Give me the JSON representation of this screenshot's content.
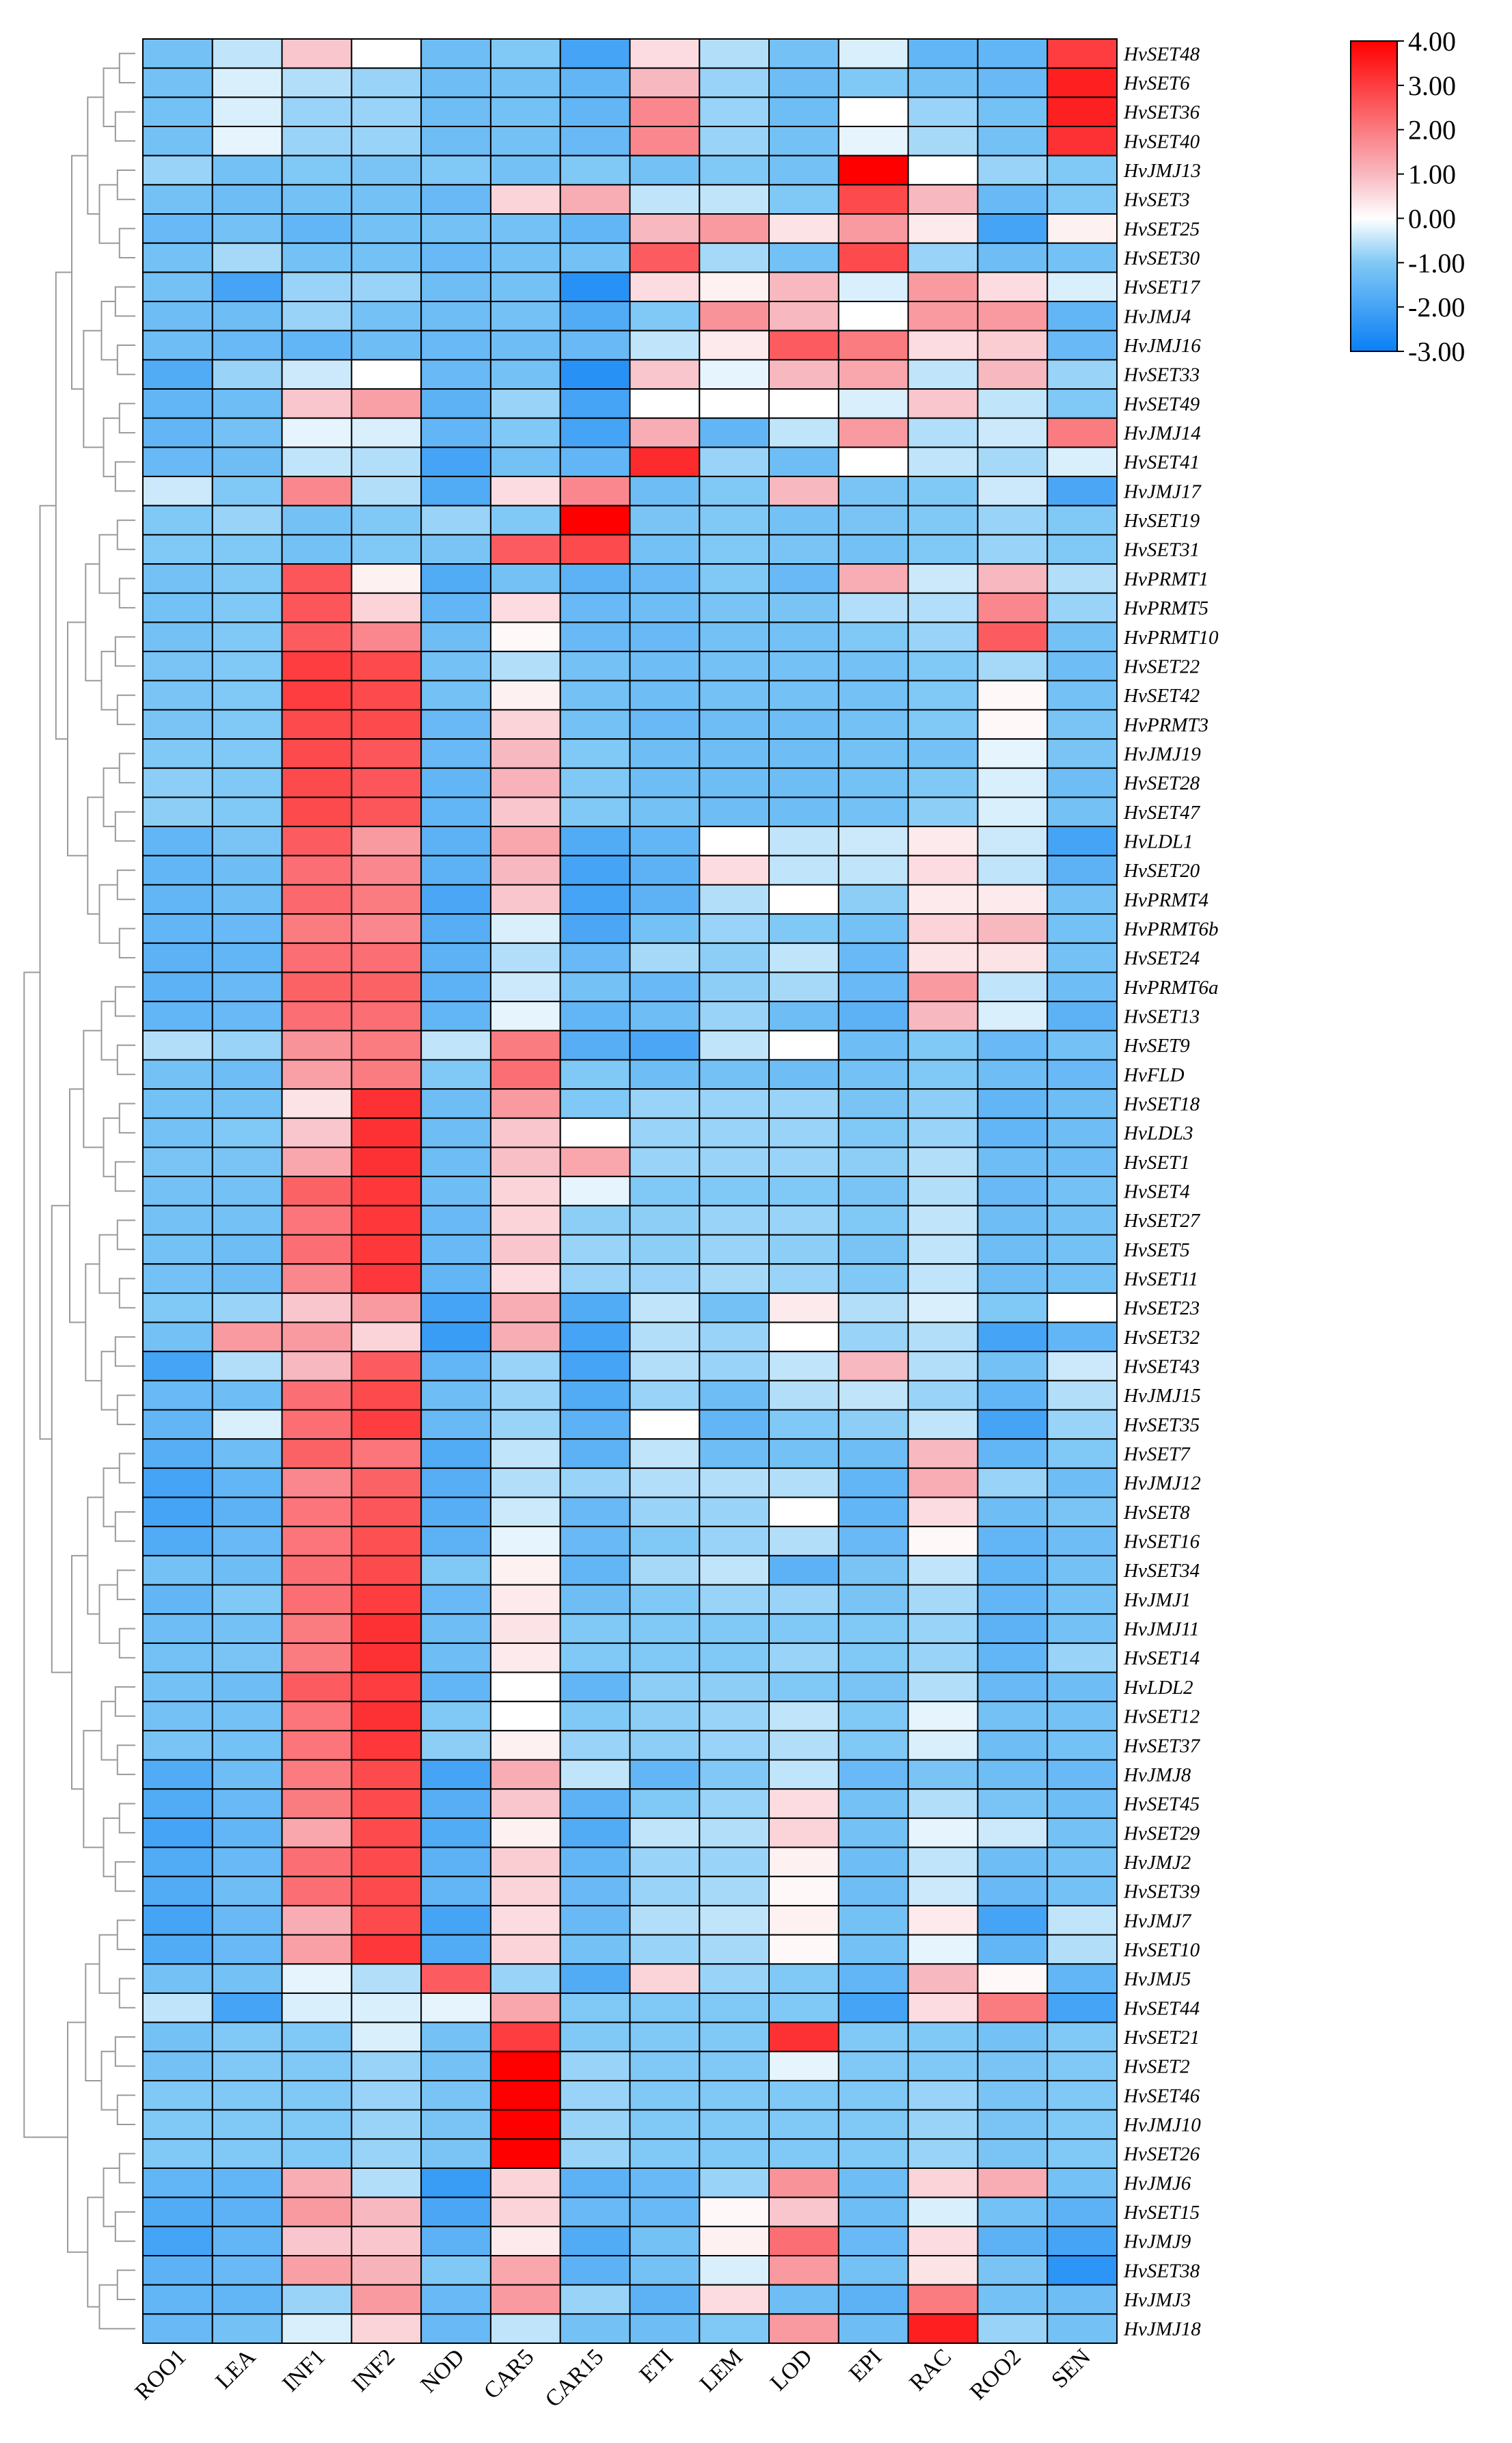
{
  "chart_data": {
    "type": "heatmap",
    "title": "",
    "columns": [
      "ROO1",
      "LEA",
      "INF1",
      "INF2",
      "NOD",
      "CAR5",
      "CAR15",
      "ETI",
      "LEM",
      "LOD",
      "EPI",
      "RAC",
      "ROO2",
      "SEN"
    ],
    "rows": [
      "HvSET48",
      "HvSET6",
      "HvSET36",
      "HvSET40",
      "HvJMJ13",
      "HvSET3",
      "HvSET25",
      "HvSET30",
      "HvSET17",
      "HvJMJ4",
      "HvJMJ16",
      "HvSET33",
      "HvSET49",
      "HvJMJ14",
      "HvSET41",
      "HvJMJ17",
      "HvSET19",
      "HvSET31",
      "HvPRMT1",
      "HvPRMT5",
      "HvPRMT10",
      "HvSET22",
      "HvSET42",
      "HvPRMT3",
      "HvJMJ19",
      "HvSET28",
      "HvSET47",
      "HvLDL1",
      "HvSET20",
      "HvPRMT4",
      "HvPRMT6b",
      "HvSET24",
      "HvPRMT6a",
      "HvSET13",
      "HvSET9",
      "HvFLD",
      "HvSET18",
      "HvLDL3",
      "HvSET1",
      "HvSET4",
      "HvSET27",
      "HvSET5",
      "HvSET11",
      "HvSET23",
      "HvSET32",
      "HvSET43",
      "HvJMJ15",
      "HvSET35",
      "HvSET7",
      "HvJMJ12",
      "HvSET8",
      "HvSET16",
      "HvSET34",
      "HvJMJ1",
      "HvJMJ11",
      "HvSET14",
      "HvLDL2",
      "HvSET12",
      "HvSET37",
      "HvJMJ8",
      "HvSET45",
      "HvSET29",
      "HvJMJ2",
      "HvSET39",
      "HvJMJ7",
      "HvSET10",
      "HvJMJ5",
      "HvSET44",
      "HvSET21",
      "HvSET2",
      "HvSET46",
      "HvJMJ10",
      "HvSET26",
      "HvJMJ6",
      "HvSET15",
      "HvJMJ9",
      "HvSET38",
      "HvJMJ3",
      "HvJMJ18"
    ],
    "values": [
      [
        -1.2,
        -0.5,
        0.8,
        0,
        -1.3,
        -1,
        -2,
        0.5,
        -0.6,
        -1.2,
        -0.3,
        -1.5,
        -1.5,
        3
      ],
      [
        -1.2,
        -0.3,
        -0.6,
        -0.8,
        -1.3,
        -1.2,
        -1.5,
        1,
        -0.8,
        -1.3,
        -1,
        -1.2,
        -1.4,
        3.5
      ],
      [
        -1.2,
        -0.3,
        -0.8,
        -0.8,
        -1.3,
        -1.2,
        -1.5,
        1.8,
        -0.8,
        -1.3,
        0,
        -0.8,
        -1.2,
        3.5
      ],
      [
        -1.2,
        -0.2,
        -0.8,
        -0.8,
        -1.3,
        -1.2,
        -1.4,
        1.8,
        -0.8,
        -1.2,
        -0.2,
        -0.7,
        -1.2,
        3.2
      ],
      [
        -0.8,
        -1.2,
        -1,
        -1.1,
        -1,
        -1.2,
        -1,
        -1.2,
        -1,
        -1.2,
        4,
        0,
        -0.8,
        -1
      ],
      [
        -1.2,
        -1.3,
        -1.2,
        -1.2,
        -1.4,
        0.6,
        1.2,
        -0.5,
        -0.5,
        -1,
        2.8,
        1,
        -1.4,
        -1
      ],
      [
        -1.4,
        -1.2,
        -1.5,
        -1.2,
        -1.2,
        -1.2,
        -1.5,
        1,
        1.5,
        0.4,
        1.5,
        0.3,
        -2,
        0.2
      ],
      [
        -1.2,
        -0.7,
        -1.2,
        -1.2,
        -1.4,
        -1.2,
        -1.2,
        2.5,
        -0.7,
        -1.2,
        2.8,
        -0.8,
        -1.3,
        -1.2
      ],
      [
        -1.2,
        -2,
        -0.8,
        -0.8,
        -1.3,
        -1.2,
        -2.5,
        0.5,
        0.2,
        1,
        -0.3,
        1.5,
        0.5,
        -0.3
      ],
      [
        -1.3,
        -1.3,
        -0.8,
        -1.2,
        -1.3,
        -1.2,
        -1.8,
        -1,
        1.6,
        1,
        0,
        1.5,
        1.5,
        -1.5
      ],
      [
        -1.3,
        -1.4,
        -1.5,
        -1.3,
        -1.4,
        -1.3,
        -1.4,
        -0.5,
        0.3,
        2.5,
        2,
        0.5,
        0.7,
        -1.4
      ],
      [
        -1.8,
        -0.8,
        -0.4,
        0,
        -1.4,
        -1.2,
        -2.5,
        0.8,
        -0.2,
        1,
        1.3,
        -0.5,
        1,
        -0.8
      ],
      [
        -1.5,
        -1.3,
        0.8,
        1.4,
        -1.6,
        -0.8,
        -2,
        0,
        0,
        0,
        -0.3,
        0.8,
        -0.5,
        -1
      ],
      [
        -1.5,
        -1.2,
        -0.2,
        -0.3,
        -1.5,
        -1,
        -2,
        1.2,
        -1.5,
        -0.5,
        1.5,
        -0.6,
        -0.4,
        2
      ],
      [
        -1.4,
        -1.3,
        -0.5,
        -0.6,
        -2,
        -1.2,
        -1.5,
        3.3,
        -0.8,
        -1.3,
        0,
        -0.5,
        -0.7,
        -0.3
      ],
      [
        -0.4,
        -1,
        1.8,
        -0.6,
        -1.8,
        0.5,
        1.8,
        -1.3,
        -1,
        1,
        -1.1,
        -1,
        -0.4,
        -1.9
      ],
      [
        -1,
        -0.8,
        -1.2,
        -1,
        -0.8,
        -1,
        4,
        -1.1,
        -1,
        -1.2,
        -1.1,
        -1,
        -0.8,
        -1
      ],
      [
        -1,
        -1,
        -1.2,
        -1,
        -1.1,
        2.5,
        2.8,
        -1.2,
        -1,
        -1.1,
        -1.2,
        -1,
        -0.8,
        -1
      ],
      [
        -1.2,
        -1,
        2.6,
        0.2,
        -1.8,
        -1.2,
        -1.6,
        -1.4,
        -1,
        -1.4,
        1.2,
        -0.4,
        1,
        -0.6
      ],
      [
        -1.2,
        -1,
        2.6,
        0.6,
        -1.5,
        0.5,
        -1.4,
        -1.3,
        -1.1,
        -1.1,
        -0.6,
        -0.6,
        1.8,
        -0.8
      ],
      [
        -1.2,
        -1,
        2.5,
        1.8,
        -1.3,
        0.1,
        -1.4,
        -1.4,
        -1.2,
        -1.2,
        -1,
        -0.8,
        2.5,
        -1.2
      ],
      [
        -1.1,
        -1,
        3,
        2.8,
        -1.2,
        -0.6,
        -1.2,
        -1.3,
        -1.2,
        -1.2,
        -1.2,
        -1,
        -0.7,
        -1.3
      ],
      [
        -1.1,
        -1,
        3,
        2.8,
        -1.2,
        0.2,
        -1.2,
        -1.3,
        -1.2,
        -1.2,
        -1.2,
        -1,
        0.1,
        -1.2
      ],
      [
        -1.1,
        -1,
        2.8,
        2.8,
        -1.4,
        0.6,
        -1.2,
        -1.4,
        -1.3,
        -1.3,
        -1.2,
        -1,
        0.1,
        -1.1
      ],
      [
        -1,
        -1,
        2.8,
        2.6,
        -1.4,
        1,
        -1,
        -1.3,
        -1.3,
        -1.3,
        -1.2,
        -1.2,
        -0.2,
        -1.1
      ],
      [
        -0.9,
        -1,
        2.8,
        2.6,
        -1.5,
        1.1,
        -1,
        -1.3,
        -1.3,
        -1.3,
        -1.2,
        -1,
        -0.3,
        -1.3
      ],
      [
        -0.9,
        -1,
        2.8,
        2.6,
        -1.5,
        0.8,
        -1,
        -1.2,
        -1.3,
        -1.3,
        -1.2,
        -0.9,
        -0.3,
        -1.2
      ],
      [
        -1.5,
        -1.1,
        2.5,
        1.5,
        -1.6,
        1.3,
        -1.8,
        -1.5,
        0,
        -0.5,
        -0.4,
        0.3,
        -0.4,
        -2
      ],
      [
        -1.5,
        -1.3,
        2.2,
        1.8,
        -1.6,
        1,
        -2,
        -1.6,
        0.5,
        -0.5,
        -0.5,
        0.5,
        -0.5,
        -1.6
      ],
      [
        -1.5,
        -1.3,
        2.3,
        2,
        -1.9,
        0.8,
        -2,
        -1.6,
        -0.6,
        0,
        -0.9,
        0.3,
        0.3,
        -1.2
      ],
      [
        -1.5,
        -1.4,
        2,
        1.8,
        -1.7,
        -0.3,
        -1.9,
        -1.2,
        -0.8,
        -1,
        -1.2,
        0.6,
        1,
        -1.2
      ],
      [
        -1.6,
        -1.5,
        2.2,
        2.2,
        -1.6,
        -0.6,
        -1.4,
        -0.7,
        -0.9,
        -0.5,
        -1.4,
        0.4,
        0.4,
        -1.2
      ],
      [
        -1.6,
        -1.4,
        2.4,
        2.4,
        -1.6,
        -0.4,
        -1.2,
        -1.4,
        -0.9,
        -0.7,
        -1.4,
        1.5,
        -0.5,
        -1.3
      ],
      [
        -1.5,
        -1.4,
        2.2,
        2.2,
        -1.5,
        -0.2,
        -1.5,
        -1.3,
        -0.8,
        -1.3,
        -1.6,
        1,
        -0.3,
        -1.6
      ],
      [
        -0.6,
        -0.8,
        1.6,
        2,
        -0.5,
        2,
        -1.7,
        -1.9,
        -0.5,
        0,
        -1.3,
        -1,
        -1.4,
        -1.2
      ],
      [
        -1.2,
        -1.3,
        1.4,
        2,
        -1,
        2.2,
        -1,
        -1.3,
        -1.2,
        -1.3,
        -1.2,
        -1,
        -1.3,
        -1.4
      ],
      [
        -1.2,
        -1.2,
        0.4,
        3.2,
        -1.3,
        1.5,
        -1,
        -0.8,
        -0.8,
        -0.8,
        -1.1,
        -0.9,
        -1.5,
        -1.3
      ],
      [
        -1.2,
        -1,
        0.8,
        3.2,
        -1.3,
        0.8,
        0,
        -0.8,
        -0.8,
        -0.8,
        -1,
        -0.8,
        -1.5,
        -1.3
      ],
      [
        -1.1,
        -1.1,
        1.3,
        3.2,
        -1.3,
        0.9,
        1.3,
        -0.8,
        -0.8,
        -0.8,
        -0.9,
        -0.6,
        -1.3,
        -1.3
      ],
      [
        -1.2,
        -1.2,
        2.4,
        3.1,
        -1.3,
        0.6,
        -0.2,
        -1,
        -1,
        -1,
        -1.1,
        -0.6,
        -1.4,
        -1.2
      ],
      [
        -1.2,
        -1.2,
        2.1,
        3.1,
        -1.4,
        0.6,
        -0.9,
        -0.9,
        -0.8,
        -0.8,
        -1,
        -0.5,
        -1.3,
        -1.2
      ],
      [
        -1.2,
        -1.3,
        2.2,
        3.1,
        -1.4,
        0.8,
        -0.8,
        -0.9,
        -0.8,
        -0.9,
        -1.1,
        -0.5,
        -1.3,
        -1.2
      ],
      [
        -1.2,
        -1.3,
        1.8,
        3.1,
        -1.5,
        0.5,
        -0.8,
        -0.8,
        -0.7,
        -0.8,
        -1,
        -0.5,
        -1.3,
        -1.2
      ],
      [
        -1,
        -0.8,
        0.8,
        1.5,
        -2,
        1.2,
        -1.8,
        -0.5,
        -1.2,
        0.3,
        -0.6,
        -0.3,
        -1,
        0
      ],
      [
        -1.2,
        1.5,
        1.5,
        0.6,
        -2.2,
        1.2,
        -2,
        -0.6,
        -0.8,
        0,
        -0.8,
        -0.6,
        -2,
        -1.5
      ],
      [
        -2,
        -0.6,
        1,
        2.5,
        -1.5,
        -0.8,
        -2,
        -0.6,
        -0.8,
        -0.5,
        1,
        -0.6,
        -1.2,
        -0.4
      ],
      [
        -1.4,
        -1.3,
        2.2,
        2.8,
        -1.3,
        -0.8,
        -1.8,
        -0.8,
        -1.3,
        -0.6,
        -0.5,
        -0.8,
        -1.5,
        -0.6
      ],
      [
        -1.5,
        -0.3,
        2.2,
        3,
        -1.4,
        -0.8,
        -1.6,
        0,
        -1.5,
        -1,
        -0.9,
        -0.5,
        -2,
        -0.8
      ],
      [
        -1.7,
        -1.3,
        2.4,
        2.1,
        -1.8,
        -0.5,
        -1.6,
        -0.5,
        -1.3,
        -1.2,
        -1.3,
        1,
        -1.5,
        -1
      ],
      [
        -2,
        -1.5,
        1.8,
        2.4,
        -1.7,
        -0.6,
        -0.8,
        -0.6,
        -0.6,
        -0.6,
        -1.5,
        1.2,
        -0.8,
        -1.3
      ],
      [
        -2,
        -1.6,
        2.1,
        2.6,
        -1.7,
        -0.4,
        -1.4,
        -0.8,
        -0.8,
        0,
        -1.5,
        0.5,
        -1.3,
        -1.1
      ],
      [
        -1.8,
        -1.4,
        2.1,
        2.7,
        -1.6,
        -0.2,
        -1.4,
        -1,
        -0.8,
        -0.6,
        -1.4,
        0.1,
        -1.5,
        -1.3
      ],
      [
        -1.2,
        -1.3,
        2.2,
        2.8,
        -1,
        0.2,
        -1.5,
        -0.7,
        -0.5,
        -1.6,
        -1.1,
        -0.5,
        -1.5,
        -1.2
      ],
      [
        -1.5,
        -1,
        2.2,
        3,
        -1.4,
        0.3,
        -1.3,
        -1,
        -0.8,
        -0.8,
        -1.1,
        -0.7,
        -1.5,
        -1.2
      ],
      [
        -1.3,
        -1.2,
        2,
        3.2,
        -1.3,
        0.4,
        -1,
        -1,
        -1,
        -1,
        -1,
        -0.8,
        -1.6,
        -1.2
      ],
      [
        -1.2,
        -1.1,
        2,
        3.2,
        -1.3,
        0.3,
        -1,
        -1,
        -1,
        -0.8,
        -1,
        -0.8,
        -1.5,
        -0.8
      ],
      [
        -1.2,
        -1.3,
        2.5,
        3,
        -1.5,
        0,
        -1.5,
        -0.9,
        -0.9,
        -1,
        -1.1,
        -0.6,
        -1.4,
        -1.3
      ],
      [
        -1.2,
        -1.2,
        2.1,
        3.2,
        -1,
        0,
        -1,
        -0.9,
        -0.8,
        -0.5,
        -1,
        -0.2,
        -1.2,
        -1.2
      ],
      [
        -1.1,
        -1.2,
        2.1,
        3.1,
        -0.9,
        0.2,
        -0.8,
        -0.9,
        -0.8,
        -0.6,
        -1,
        -0.3,
        -1.3,
        -1.2
      ],
      [
        -1.8,
        -1.3,
        2,
        2.8,
        -2,
        1.2,
        -0.5,
        -1.5,
        -1,
        -0.5,
        -1.4,
        -1.1,
        -1.3,
        -1.4
      ],
      [
        -1.8,
        -1.4,
        2,
        2.8,
        -1.7,
        0.8,
        -1.6,
        -1,
        -0.8,
        0.5,
        -1.2,
        -0.6,
        -1.1,
        -1.3
      ],
      [
        -2,
        -1.5,
        1.3,
        2.8,
        -1.8,
        0.2,
        -1.8,
        -0.5,
        -0.6,
        0.6,
        -1.2,
        -0.2,
        -0.4,
        -1.2
      ],
      [
        -1.8,
        -1.4,
        2.2,
        2.8,
        -1.6,
        0.7,
        -1.5,
        -0.8,
        -0.8,
        0.2,
        -1.3,
        -0.5,
        -1.3,
        -1.2
      ],
      [
        -1.8,
        -1.3,
        2.2,
        2.8,
        -1.5,
        0.6,
        -1.4,
        -0.8,
        -0.7,
        0.1,
        -1.3,
        -0.4,
        -1.4,
        -1.2
      ],
      [
        -2,
        -1.4,
        1.2,
        2.8,
        -2,
        0.5,
        -1.4,
        -0.6,
        -0.5,
        0.2,
        -1.2,
        0.3,
        -2,
        -0.5
      ],
      [
        -1.8,
        -1.4,
        1.4,
        3.1,
        -1.8,
        0.6,
        -1.2,
        -0.8,
        -0.7,
        0.1,
        -1.2,
        -0.2,
        -1.5,
        -0.6
      ],
      [
        -1.2,
        -1.2,
        -0.2,
        -0.6,
        2.5,
        -0.8,
        -1.8,
        0.6,
        -0.8,
        -1,
        -1.5,
        1,
        0.1,
        -1.5
      ],
      [
        -0.5,
        -2,
        -0.3,
        -0.3,
        -0.2,
        1.3,
        -1,
        -1,
        -1,
        -1,
        -2,
        0.5,
        2,
        -2
      ],
      [
        -1.2,
        -1,
        -1,
        -0.3,
        -1.2,
        3,
        -1,
        -1,
        -1,
        3.2,
        -1,
        -1,
        -1.2,
        -1
      ],
      [
        -1.2,
        -1,
        -1,
        -0.8,
        -1.2,
        4,
        -0.8,
        -1,
        -1,
        -0.2,
        -1,
        -1,
        -1.1,
        -1
      ],
      [
        -1,
        -1,
        -1,
        -0.8,
        -1.1,
        4,
        -0.8,
        -1,
        -1,
        -1,
        -1,
        -0.8,
        -1.1,
        -1
      ],
      [
        -1,
        -1,
        -1,
        -0.8,
        -1.1,
        4,
        -0.8,
        -1,
        -1,
        -1,
        -1,
        -0.8,
        -1.1,
        -1
      ],
      [
        -1,
        -1,
        -1,
        -0.8,
        -1.1,
        4,
        -0.8,
        -1,
        -1,
        -1,
        -1,
        -0.8,
        -1.1,
        -1
      ],
      [
        -1.5,
        -1.5,
        1.2,
        -0.6,
        -2.2,
        0.6,
        -1.6,
        -1.4,
        -0.8,
        1.6,
        -1.3,
        0.6,
        1.2,
        -1.2
      ],
      [
        -1.8,
        -1.6,
        1.5,
        1,
        -1.9,
        0.6,
        -1.4,
        -1.4,
        0.1,
        0.8,
        -1.3,
        -0.3,
        -1.2,
        -1.6
      ],
      [
        -2,
        -1.5,
        0.8,
        0.8,
        -1.6,
        0.3,
        -1.8,
        -1.2,
        0.2,
        2.2,
        -1.4,
        0.5,
        -1.6,
        -2
      ],
      [
        -1.6,
        -1.4,
        1.4,
        1.1,
        -1,
        1.3,
        -1.6,
        -1.2,
        -0.3,
        1.5,
        -1.2,
        0.4,
        -1.1,
        -2.4
      ],
      [
        -1.5,
        -1.5,
        -0.8,
        1.5,
        -1.4,
        1.5,
        -0.8,
        -1.6,
        0.5,
        -1.3,
        -1.6,
        2,
        -1.2,
        -1.3
      ],
      [
        -1.4,
        -1.2,
        -0.3,
        0.6,
        -1.4,
        -0.5,
        -1.2,
        -1.3,
        -1,
        1.5,
        -1.3,
        3.5,
        -0.8,
        -1.2
      ]
    ],
    "color_scale": {
      "min": -3,
      "max": 4,
      "stops": [
        {
          "value": -3,
          "color": "#0a7ff5"
        },
        {
          "value": -1,
          "color": "#80c8f5"
        },
        {
          "value": 0,
          "color": "#ffffff"
        },
        {
          "value": 1,
          "color": "#f8b8c0"
        },
        {
          "value": 4,
          "color": "#ff0000"
        }
      ],
      "tick_labels": [
        "4.00",
        "3.00",
        "2.00",
        "1.00",
        "0.00",
        "-1.00",
        "-2.00",
        "-3.00"
      ]
    }
  }
}
